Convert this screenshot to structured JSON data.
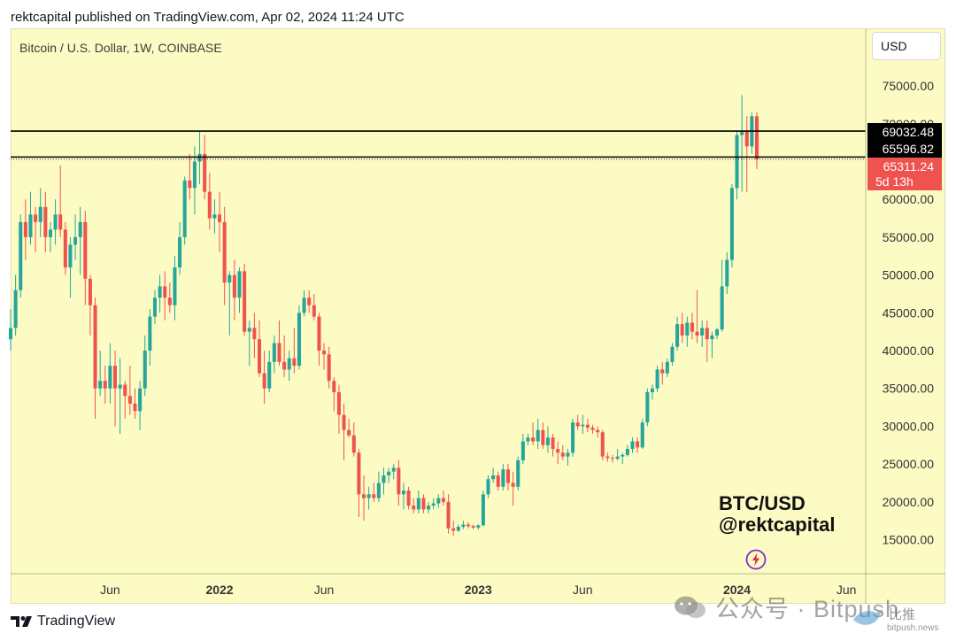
{
  "header": {
    "text": "rektcapital published on TradingView.com, Apr 02, 2024 11:24 UTC"
  },
  "symbol_title": "Bitcoin / U.S. Dollar, 1W, COINBASE",
  "currency": "USD",
  "watermark": {
    "title": "BTC/USD",
    "handle": "@rektcapital"
  },
  "footer": {
    "logo_text": "TradingView"
  },
  "overlay_watermark": {
    "text": "公众号 · Bitpush",
    "small_cn": "比推",
    "site": "bitpush.news"
  },
  "colors": {
    "background": "#fdfbc4",
    "up": "#26a69a",
    "down": "#ef5350",
    "level_line": "#000000"
  },
  "chart_data": {
    "type": "candlestick",
    "title": "Bitcoin / U.S. Dollar, 1W, COINBASE",
    "ylim": [
      10500,
      82500
    ],
    "y_ticks": [
      15000,
      20000,
      25000,
      30000,
      35000,
      40000,
      45000,
      50000,
      55000,
      60000,
      65000,
      70000,
      75000
    ],
    "y_tick_labels": [
      "15000.00",
      "20000.00",
      "25000.00",
      "30000.00",
      "35000.00",
      "40000.00",
      "45000.00",
      "50000.00",
      "55000.00",
      "60000.00",
      "65000.00",
      "70000.00",
      "75000.00"
    ],
    "x_ticks": [
      {
        "label": "Jun",
        "bold": false,
        "idx": 20
      },
      {
        "label": "2022",
        "bold": true,
        "idx": 42
      },
      {
        "label": "Jun",
        "bold": false,
        "idx": 63
      },
      {
        "label": "2023",
        "bold": true,
        "idx": 94
      },
      {
        "label": "Jun",
        "bold": false,
        "idx": 115
      },
      {
        "label": "2024",
        "bold": true,
        "idx": 146
      },
      {
        "label": "Jun",
        "bold": false,
        "idx": 168
      }
    ],
    "levels": [
      {
        "value": 69032.48,
        "label": "69032.48",
        "style": "solid"
      },
      {
        "value": 65596.82,
        "label": "65596.82",
        "style": "solid"
      }
    ],
    "current_price": {
      "value": 65311.24,
      "label": "65311.24",
      "countdown": "5d 13h",
      "style": "dotted"
    },
    "candles": [
      [
        41500,
        45500,
        40000,
        43000
      ],
      [
        43000,
        50000,
        42000,
        48000
      ],
      [
        48000,
        58000,
        47000,
        57000
      ],
      [
        57000,
        60000,
        52000,
        55000
      ],
      [
        55000,
        61000,
        54000,
        58000
      ],
      [
        58000,
        59000,
        53000,
        57000
      ],
      [
        57000,
        61500,
        55000,
        59000
      ],
      [
        59000,
        61000,
        53000,
        55000
      ],
      [
        55000,
        57000,
        53000,
        56000
      ],
      [
        56000,
        60000,
        54000,
        58000
      ],
      [
        58000,
        64500,
        55000,
        56000
      ],
      [
        56000,
        57000,
        50000,
        51000
      ],
      [
        51000,
        55000,
        47000,
        54000
      ],
      [
        54000,
        58000,
        52000,
        55000
      ],
      [
        55000,
        59000,
        50000,
        57000
      ],
      [
        57000,
        58500,
        46000,
        49500
      ],
      [
        49500,
        50000,
        42000,
        46000
      ],
      [
        46000,
        47000,
        31000,
        35000
      ],
      [
        35000,
        40000,
        34000,
        36000
      ],
      [
        36000,
        38000,
        33000,
        35000
      ],
      [
        35000,
        41000,
        33000,
        38000
      ],
      [
        38000,
        40000,
        30000,
        35000
      ],
      [
        35000,
        39000,
        29000,
        35500
      ],
      [
        35500,
        36000,
        31000,
        34000
      ],
      [
        34000,
        38000,
        31500,
        33000
      ],
      [
        33000,
        35000,
        31000,
        32000
      ],
      [
        32000,
        36000,
        29500,
        35000
      ],
      [
        35000,
        42000,
        34000,
        40000
      ],
      [
        40000,
        45500,
        38000,
        44500
      ],
      [
        44500,
        48000,
        43500,
        47000
      ],
      [
        47000,
        50000,
        45000,
        48500
      ],
      [
        48500,
        50500,
        44000,
        47000
      ],
      [
        47000,
        49000,
        45000,
        46000
      ],
      [
        46000,
        52500,
        44000,
        51000
      ],
      [
        51000,
        57000,
        50000,
        55000
      ],
      [
        55000,
        63000,
        54000,
        62500
      ],
      [
        62500,
        66000,
        60000,
        61500
      ],
      [
        61500,
        67000,
        58000,
        65000
      ],
      [
        65000,
        69000,
        62000,
        66000
      ],
      [
        66000,
        68500,
        60000,
        61000
      ],
      [
        61000,
        63500,
        56000,
        57500
      ],
      [
        57500,
        60000,
        55500,
        58000
      ],
      [
        58000,
        61000,
        53000,
        57000
      ],
      [
        57000,
        59000,
        46000,
        49000
      ],
      [
        49000,
        50500,
        42000,
        50000
      ],
      [
        50000,
        52000,
        44000,
        47000
      ],
      [
        47000,
        51000,
        45000,
        50500
      ],
      [
        50500,
        51500,
        42000,
        42500
      ],
      [
        42500,
        44000,
        38000,
        43000
      ],
      [
        43000,
        45000,
        39000,
        41500
      ],
      [
        41500,
        44000,
        36500,
        37000
      ],
      [
        37000,
        40000,
        33000,
        35000
      ],
      [
        35000,
        40000,
        34500,
        38500
      ],
      [
        38500,
        42000,
        37000,
        41000
      ],
      [
        41000,
        44000,
        38000,
        38500
      ],
      [
        38500,
        42000,
        36500,
        37500
      ],
      [
        37500,
        40000,
        36000,
        39000
      ],
      [
        39000,
        43000,
        37000,
        38000
      ],
      [
        38000,
        46000,
        37500,
        45000
      ],
      [
        45000,
        48000,
        44500,
        47000
      ],
      [
        47000,
        48000,
        45000,
        46000
      ],
      [
        46000,
        47500,
        44000,
        44500
      ],
      [
        44500,
        45000,
        38000,
        40000
      ],
      [
        40000,
        41000,
        37500,
        39500
      ],
      [
        39500,
        40500,
        35000,
        36000
      ],
      [
        36000,
        36500,
        32000,
        34500
      ],
      [
        34500,
        35500,
        29000,
        31500
      ],
      [
        31500,
        33000,
        25500,
        29500
      ],
      [
        29500,
        31000,
        28500,
        28800
      ],
      [
        28800,
        30500,
        26000,
        26500
      ],
      [
        26500,
        27000,
        18000,
        21000
      ],
      [
        21000,
        23500,
        17500,
        20500
      ],
      [
        20500,
        22000,
        19000,
        21000
      ],
      [
        21000,
        22500,
        20000,
        20500
      ],
      [
        20500,
        24000,
        20000,
        22500
      ],
      [
        22500,
        24500,
        21000,
        23500
      ],
      [
        23500,
        24500,
        22500,
        24000
      ],
      [
        24000,
        25000,
        23000,
        24500
      ],
      [
        24500,
        25500,
        19500,
        21000
      ],
      [
        21000,
        22500,
        19000,
        21500
      ],
      [
        21500,
        22000,
        19000,
        19500
      ],
      [
        19500,
        20500,
        18500,
        19000
      ],
      [
        19000,
        21500,
        18500,
        20500
      ],
      [
        20500,
        21000,
        18500,
        19000
      ],
      [
        19000,
        20000,
        18500,
        19500
      ],
      [
        19500,
        20500,
        19000,
        19800
      ],
      [
        19800,
        21000,
        19200,
        20500
      ],
      [
        20500,
        21500,
        19500,
        20000
      ],
      [
        20000,
        21000,
        15800,
        16500
      ],
      [
        16500,
        17500,
        15500,
        16200
      ],
      [
        16200,
        17000,
        16000,
        16700
      ],
      [
        16700,
        17500,
        16400,
        17000
      ],
      [
        17000,
        17300,
        16500,
        16800
      ],
      [
        16800,
        17000,
        16400,
        16600
      ],
      [
        16600,
        17000,
        16300,
        16900
      ],
      [
        16900,
        21500,
        16800,
        21000
      ],
      [
        21000,
        23500,
        20500,
        23000
      ],
      [
        23000,
        24500,
        22500,
        23500
      ],
      [
        23500,
        24000,
        21500,
        22000
      ],
      [
        22000,
        25000,
        21500,
        24300
      ],
      [
        24300,
        25000,
        21500,
        22500
      ],
      [
        22500,
        24000,
        19500,
        22000
      ],
      [
        22000,
        26000,
        21500,
        25500
      ],
      [
        25500,
        29000,
        25000,
        28000
      ],
      [
        28000,
        29000,
        27500,
        28500
      ],
      [
        28500,
        30500,
        27500,
        28000
      ],
      [
        28000,
        31000,
        27000,
        29500
      ],
      [
        29500,
        30500,
        27000,
        27500
      ],
      [
        27500,
        30000,
        26500,
        28500
      ],
      [
        28500,
        29000,
        26000,
        27000
      ],
      [
        27000,
        28000,
        25000,
        26500
      ],
      [
        26500,
        27500,
        25500,
        26000
      ],
      [
        26000,
        27000,
        24800,
        26500
      ],
      [
        26500,
        31000,
        26000,
        30500
      ],
      [
        30500,
        31500,
        29500,
        30000
      ],
      [
        30000,
        31500,
        29000,
        30200
      ],
      [
        30200,
        31000,
        29200,
        29800
      ],
      [
        29800,
        30200,
        29000,
        29500
      ],
      [
        29500,
        30000,
        28500,
        29200
      ],
      [
        29200,
        29500,
        25500,
        26000
      ],
      [
        26000,
        26500,
        25300,
        25800
      ],
      [
        25800,
        26200,
        25200,
        25700
      ],
      [
        25700,
        27000,
        25500,
        26000
      ],
      [
        26000,
        26500,
        25000,
        26200
      ],
      [
        26200,
        27500,
        26000,
        27000
      ],
      [
        27000,
        28500,
        26500,
        28000
      ],
      [
        28000,
        28500,
        26500,
        27200
      ],
      [
        27200,
        31000,
        27000,
        30500
      ],
      [
        30500,
        35000,
        30000,
        34500
      ],
      [
        34500,
        35500,
        33500,
        35000
      ],
      [
        35000,
        38000,
        34500,
        37500
      ],
      [
        37500,
        38500,
        35500,
        37000
      ],
      [
        37000,
        39000,
        36500,
        38500
      ],
      [
        38500,
        41000,
        38000,
        40500
      ],
      [
        40500,
        44500,
        40000,
        43500
      ],
      [
        43500,
        45000,
        41000,
        42000
      ],
      [
        42000,
        44500,
        40500,
        43700
      ],
      [
        43700,
        45000,
        41500,
        42500
      ],
      [
        42500,
        48000,
        41000,
        42000
      ],
      [
        42000,
        44000,
        40500,
        43000
      ],
      [
        43000,
        44000,
        38500,
        41500
      ],
      [
        41500,
        42500,
        39000,
        42000
      ],
      [
        42000,
        43000,
        41500,
        42800
      ],
      [
        42800,
        52000,
        42500,
        48500
      ],
      [
        48500,
        53000,
        47500,
        52000
      ],
      [
        52000,
        62000,
        51000,
        61500
      ],
      [
        61500,
        69000,
        60000,
        68500
      ],
      [
        68500,
        73800,
        61000,
        69000
      ],
      [
        69000,
        71000,
        61000,
        67000
      ],
      [
        67000,
        71500,
        66000,
        71000
      ],
      [
        71000,
        71500,
        64000,
        65311.24
      ]
    ]
  }
}
